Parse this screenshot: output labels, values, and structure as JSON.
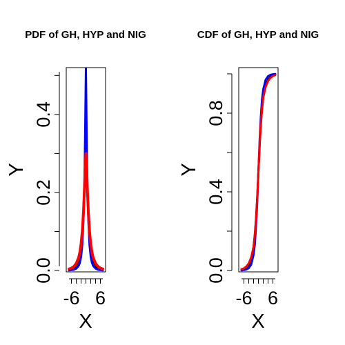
{
  "chart_data": [
    {
      "type": "line",
      "title": "PDF of GH, HYP and NIG",
      "xlabel": "X",
      "ylabel": "Y",
      "xlim": [
        -7,
        7
      ],
      "ylim": [
        0,
        0.52
      ],
      "x_ticks": [
        -6,
        -4,
        -2,
        0,
        2,
        4,
        6
      ],
      "x_tick_labels": [
        "-6",
        "",
        "",
        "",
        "",
        "",
        "6"
      ],
      "y_ticks": [
        0.0,
        0.1,
        0.2,
        0.3,
        0.4,
        0.5
      ],
      "y_tick_labels": [
        "0.0",
        "",
        "0.2",
        "",
        "0.4",
        ""
      ],
      "grid": false,
      "legend": "none",
      "series": [
        {
          "color": "#000000",
          "x": [
            -7,
            -6,
            -5,
            -4,
            -3,
            -2.5,
            -2,
            -1.5,
            -1,
            -0.6,
            -0.3,
            0,
            0.3,
            0.6,
            1,
            1.5,
            2,
            2.5,
            3,
            4,
            5,
            6,
            7
          ],
          "values": [
            0.002,
            0.003,
            0.006,
            0.012,
            0.026,
            0.04,
            0.062,
            0.095,
            0.15,
            0.21,
            0.27,
            0.31,
            0.27,
            0.21,
            0.15,
            0.095,
            0.062,
            0.04,
            0.026,
            0.012,
            0.006,
            0.003,
            0.002
          ]
        },
        {
          "color": "#0000ff",
          "x": [
            -7,
            -6,
            -5,
            -4,
            -3,
            -2.5,
            -2,
            -1.5,
            -1,
            -0.6,
            -0.3,
            0,
            0.3,
            0.6,
            1,
            1.5,
            2,
            2.5,
            3,
            4,
            5,
            6,
            7
          ],
          "values": [
            0.0005,
            0.001,
            0.002,
            0.005,
            0.012,
            0.02,
            0.035,
            0.065,
            0.13,
            0.22,
            0.36,
            0.52,
            0.36,
            0.22,
            0.13,
            0.065,
            0.035,
            0.02,
            0.012,
            0.005,
            0.002,
            0.001,
            0.0005
          ]
        },
        {
          "color": "#ff0000",
          "x": [
            -7,
            -6,
            -5,
            -4,
            -3,
            -2.5,
            -2,
            -1.5,
            -1,
            -0.6,
            -0.3,
            0,
            0.3,
            0.6,
            1,
            1.5,
            2,
            2.5,
            3,
            4,
            5,
            6,
            7
          ],
          "values": [
            0.004,
            0.006,
            0.01,
            0.018,
            0.033,
            0.047,
            0.068,
            0.1,
            0.15,
            0.21,
            0.265,
            0.3,
            0.265,
            0.21,
            0.15,
            0.1,
            0.068,
            0.047,
            0.033,
            0.018,
            0.01,
            0.006,
            0.004
          ]
        }
      ]
    },
    {
      "type": "line",
      "title": "CDF of GH, HYP and NIG",
      "xlabel": "X",
      "ylabel": "Y",
      "xlim": [
        -7,
        7
      ],
      "ylim": [
        0,
        1
      ],
      "x_ticks": [
        -6,
        -4,
        -2,
        0,
        2,
        4,
        6
      ],
      "x_tick_labels": [
        "-6",
        "",
        "",
        "",
        "",
        "",
        "6"
      ],
      "y_ticks": [
        0.0,
        0.2,
        0.4,
        0.6,
        0.8,
        1.0
      ],
      "y_tick_labels": [
        "0.0",
        "",
        "0.4",
        "",
        "0.8",
        ""
      ],
      "grid": false,
      "legend": "none",
      "series": [
        {
          "color": "#000000",
          "x": [
            -7,
            -6,
            -5,
            -4,
            -3,
            -2,
            -1.5,
            -1,
            -0.5,
            0,
            0.5,
            1,
            1.5,
            2,
            3,
            4,
            5,
            6,
            7
          ],
          "values": [
            0.003,
            0.007,
            0.015,
            0.03,
            0.06,
            0.12,
            0.18,
            0.26,
            0.37,
            0.5,
            0.63,
            0.74,
            0.82,
            0.88,
            0.94,
            0.97,
            0.985,
            0.993,
            0.997
          ]
        },
        {
          "color": "#0000ff",
          "x": [
            -7,
            -6,
            -5,
            -4,
            -3,
            -2,
            -1.5,
            -1,
            -0.5,
            0,
            0.5,
            1,
            1.5,
            2,
            3,
            4,
            5,
            6,
            7
          ],
          "values": [
            0.001,
            0.002,
            0.005,
            0.012,
            0.03,
            0.08,
            0.13,
            0.22,
            0.34,
            0.5,
            0.66,
            0.78,
            0.87,
            0.92,
            0.97,
            0.988,
            0.995,
            0.998,
            0.999
          ]
        },
        {
          "color": "#ff0000",
          "x": [
            -7,
            -6,
            -5,
            -4,
            -3,
            -2,
            -1.5,
            -1,
            -0.5,
            0,
            0.5,
            1,
            1.5,
            2,
            3,
            4,
            5,
            6,
            7
          ],
          "values": [
            0.006,
            0.011,
            0.02,
            0.036,
            0.066,
            0.12,
            0.175,
            0.25,
            0.36,
            0.5,
            0.64,
            0.75,
            0.825,
            0.88,
            0.934,
            0.964,
            0.98,
            0.989,
            0.994
          ]
        }
      ]
    }
  ]
}
